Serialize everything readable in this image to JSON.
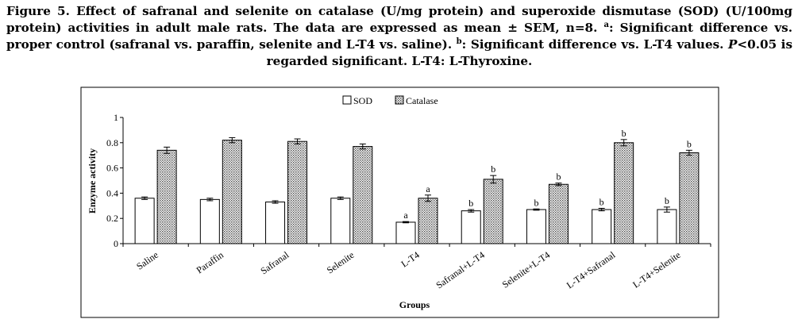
{
  "caption": {
    "lead": "Figure 5. Effect of safranal and selenite on catalase (U/mg protein) and superoxide dismutase (SOD) (U/100mg protein) activities in adult male rats. The data are expressed as mean ± SEM, n=8. ",
    "mark_a": "a",
    "part_a": ": Significant difference vs. proper control (safranal vs. paraffin, selenite and L-T4 vs. saline). ",
    "mark_b": "b",
    "part_b": ": Significant difference vs. L-T4 values. ",
    "p_italic": "P",
    "tail": "<0.05 is regarded significant. L-T4: L-Thyroxine."
  },
  "chart_data": {
    "type": "bar",
    "title": "",
    "xlabel": "Groups",
    "ylabel": "Enzyme activity",
    "ylim": [
      0,
      1
    ],
    "yticks": [
      "0",
      "0.2",
      "0.4",
      "0.6",
      "0.8",
      "1"
    ],
    "grid": false,
    "legend_position": "top-center",
    "categories": [
      "Saline",
      "Paraffin",
      "Safranal",
      "Selenite",
      "L-T4",
      "Safranal+L-T4",
      "Selenite+L-T4",
      "L-T4+Safranal",
      "L-T4+Selenite"
    ],
    "series": [
      {
        "name": "SOD",
        "pattern": "white",
        "values": [
          0.36,
          0.35,
          0.33,
          0.36,
          0.17,
          0.26,
          0.27,
          0.27,
          0.27
        ],
        "errors": [
          0.01,
          0.01,
          0.01,
          0.01,
          0.005,
          0.01,
          0.005,
          0.01,
          0.02
        ],
        "labels": [
          "",
          "",
          "",
          "",
          "a",
          "b",
          "b",
          "b",
          "b"
        ]
      },
      {
        "name": "Catalase",
        "pattern": "dotted-grey",
        "values": [
          0.74,
          0.82,
          0.81,
          0.77,
          0.36,
          0.51,
          0.47,
          0.8,
          0.72
        ],
        "errors": [
          0.025,
          0.02,
          0.02,
          0.02,
          0.025,
          0.03,
          0.01,
          0.025,
          0.02
        ],
        "labels": [
          "",
          "",
          "",
          "",
          "a",
          "b",
          "b",
          "b",
          "b"
        ]
      }
    ]
  }
}
